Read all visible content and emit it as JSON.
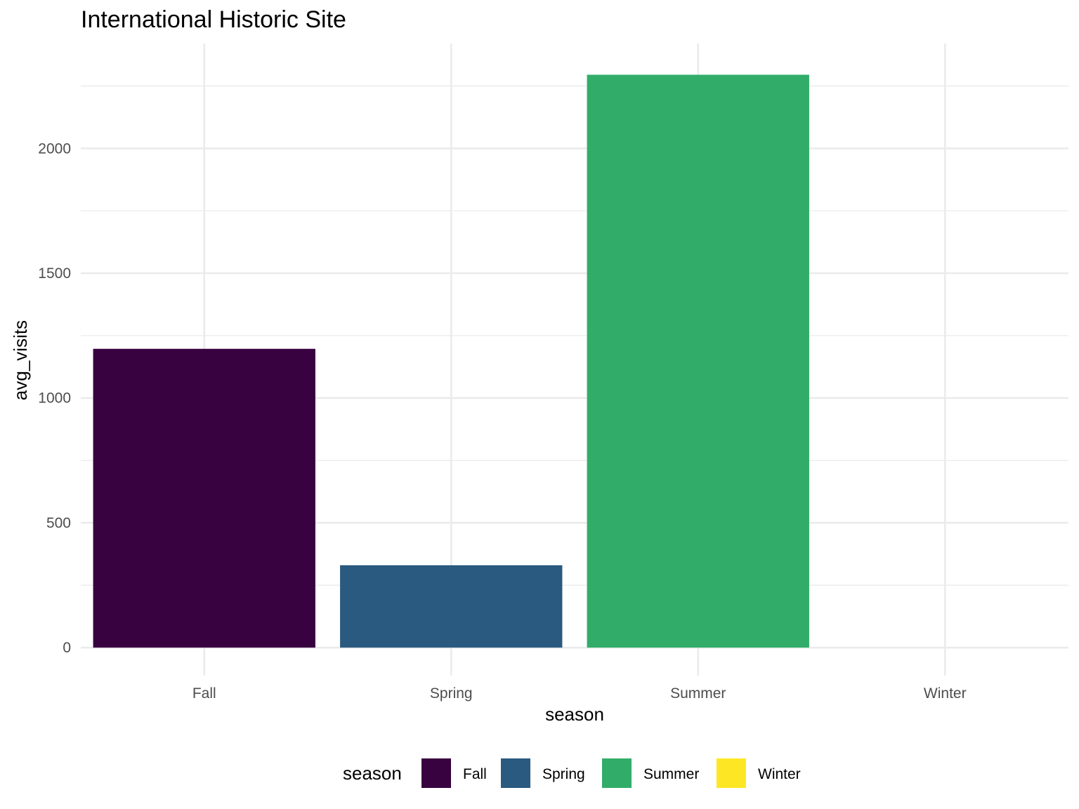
{
  "chart_data": {
    "type": "bar",
    "title": "International Historic Site",
    "xlabel": "season",
    "ylabel": "avg_visits",
    "categories": [
      "Fall",
      "Spring",
      "Summer",
      "Winter"
    ],
    "values": [
      1197,
      330,
      2295,
      0
    ],
    "colors": [
      "#440154",
      "#2a5a80",
      "#31ad69",
      "#fde725"
    ],
    "bar_colors": [
      "#380140",
      "#2a5a80",
      "#31ad69",
      "#fde725"
    ],
    "ylim": [
      -112,
      2420
    ],
    "y_ticks": [
      0,
      500,
      1000,
      1500,
      2000
    ],
    "y_tick_labels": [
      "0",
      "500",
      "1000",
      "1500",
      "2000"
    ],
    "grid": true,
    "legend": {
      "title": "season",
      "position": "bottom",
      "items": [
        "Fall",
        "Spring",
        "Summer",
        "Winter"
      ],
      "colors": [
        "#380140",
        "#2a5a80",
        "#31ad69",
        "#fde725"
      ]
    }
  }
}
